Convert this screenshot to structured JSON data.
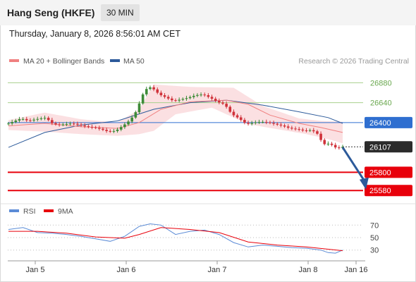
{
  "header": {
    "title": "Hang Seng (HKFE)",
    "timeframe": "30 MIN",
    "datetime": "Thursday, January 8, 2026 8:56:01 AM CET"
  },
  "legend": {
    "ma20_label": "MA 20 + Bollinger Bands",
    "ma50_label": "MA 50",
    "copyright": "Research © 2026 Trading Central",
    "rsi_label": "RSI",
    "rsi9ma_label": "9MA"
  },
  "colors": {
    "up": "#3d8b37",
    "down": "#d0323a",
    "ma20": "#f08080",
    "bollinger_fill": "#fadadd",
    "ma50": "#2c5a9a",
    "resistance": "#a8d08d",
    "pivot": "#2f6fd0",
    "support": "#e8000b",
    "rsi": "#5b8bd6",
    "rsi_ma": "#e8000b",
    "arrow": "#2c5a9a"
  },
  "chart_data": [
    {
      "type": "candlestick",
      "title": "Hang Seng (HKFE)",
      "interval": "30 MIN",
      "x_labels": [
        "Jan 5",
        "Jan 6",
        "Jan 7",
        "Jan 8",
        "Jan 16"
      ],
      "ylim": [
        25480,
        26960
      ],
      "levels": [
        {
          "value": 26880,
          "role": "resistance",
          "label": "26880"
        },
        {
          "value": 26640,
          "role": "resistance",
          "label": "26640"
        },
        {
          "value": 26400,
          "role": "pivot",
          "label": "26400"
        },
        {
          "value": 26107,
          "role": "last",
          "label": "26107"
        },
        {
          "value": 25800,
          "role": "support",
          "label": "25800"
        },
        {
          "value": 25580,
          "role": "support",
          "label": "25580"
        }
      ],
      "close_path": [
        [
          0,
          26380
        ],
        [
          4,
          26450
        ],
        [
          6,
          26420
        ],
        [
          8,
          26440
        ],
        [
          11,
          26460
        ],
        [
          12,
          26400
        ],
        [
          14,
          26370
        ],
        [
          16,
          26380
        ],
        [
          18,
          26390
        ],
        [
          20,
          26370
        ],
        [
          22,
          26350
        ],
        [
          24,
          26340
        ],
        [
          26,
          26320
        ],
        [
          28,
          26290
        ],
        [
          30,
          26300
        ],
        [
          32,
          26360
        ],
        [
          34,
          26430
        ],
        [
          35,
          26490
        ],
        [
          36,
          26560
        ],
        [
          37,
          26700
        ],
        [
          38,
          26780
        ],
        [
          39,
          26830
        ],
        [
          40,
          26820
        ],
        [
          42,
          26740
        ],
        [
          44,
          26700
        ],
        [
          46,
          26660
        ],
        [
          48,
          26680
        ],
        [
          50,
          26700
        ],
        [
          52,
          26730
        ],
        [
          54,
          26740
        ],
        [
          56,
          26700
        ],
        [
          58,
          26650
        ],
        [
          60,
          26620
        ],
        [
          62,
          26500
        ],
        [
          64,
          26450
        ],
        [
          66,
          26380
        ],
        [
          68,
          26400
        ],
        [
          70,
          26410
        ],
        [
          72,
          26400
        ],
        [
          74,
          26380
        ],
        [
          76,
          26360
        ],
        [
          78,
          26330
        ],
        [
          80,
          26320
        ],
        [
          82,
          26300
        ],
        [
          84,
          26310
        ],
        [
          86,
          26250
        ],
        [
          87,
          26130
        ],
        [
          88,
          26150
        ],
        [
          89,
          26140
        ],
        [
          90,
          26120
        ],
        [
          91,
          26080
        ],
        [
          92,
          26107
        ]
      ],
      "ma20_path": [
        [
          0,
          26360
        ],
        [
          10,
          26390
        ],
        [
          20,
          26350
        ],
        [
          30,
          26330
        ],
        [
          36,
          26400
        ],
        [
          42,
          26560
        ],
        [
          50,
          26650
        ],
        [
          60,
          26670
        ],
        [
          66,
          26620
        ],
        [
          72,
          26490
        ],
        [
          80,
          26390
        ],
        [
          86,
          26340
        ],
        [
          92,
          26280
        ]
      ],
      "ma50_path": [
        [
          0,
          26100
        ],
        [
          10,
          26280
        ],
        [
          20,
          26370
        ],
        [
          30,
          26420
        ],
        [
          40,
          26560
        ],
        [
          50,
          26640
        ],
        [
          60,
          26670
        ],
        [
          70,
          26610
        ],
        [
          80,
          26530
        ],
        [
          88,
          26460
        ],
        [
          92,
          26390
        ]
      ],
      "bollinger_upper": [
        [
          0,
          26430
        ],
        [
          10,
          26520
        ],
        [
          20,
          26440
        ],
        [
          30,
          26400
        ],
        [
          36,
          26560
        ],
        [
          40,
          26860
        ],
        [
          50,
          26830
        ],
        [
          62,
          26820
        ],
        [
          70,
          26600
        ],
        [
          80,
          26450
        ],
        [
          86,
          26420
        ],
        [
          92,
          26410
        ]
      ],
      "bollinger_lower": [
        [
          0,
          26310
        ],
        [
          10,
          26290
        ],
        [
          20,
          26260
        ],
        [
          30,
          26240
        ],
        [
          36,
          26260
        ],
        [
          40,
          26300
        ],
        [
          46,
          26500
        ],
        [
          56,
          26580
        ],
        [
          66,
          26380
        ],
        [
          74,
          26320
        ],
        [
          82,
          26260
        ],
        [
          88,
          26200
        ],
        [
          92,
          26150
        ]
      ],
      "projection": {
        "from": [
          92,
          26100
        ],
        "to": [
          98,
          25610
        ]
      }
    },
    {
      "type": "line",
      "title": "RSI",
      "ylim": [
        15,
        85
      ],
      "y_ticks": [
        70,
        50,
        30
      ],
      "series": [
        {
          "name": "RSI",
          "values": [
            [
              0,
              63
            ],
            [
              4,
              66
            ],
            [
              8,
              58
            ],
            [
              12,
              57
            ],
            [
              16,
              55
            ],
            [
              20,
              52
            ],
            [
              24,
              48
            ],
            [
              28,
              44
            ],
            [
              32,
              52
            ],
            [
              36,
              68
            ],
            [
              39,
              72
            ],
            [
              42,
              70
            ],
            [
              46,
              55
            ],
            [
              50,
              60
            ],
            [
              54,
              62
            ],
            [
              58,
              55
            ],
            [
              62,
              42
            ],
            [
              66,
              35
            ],
            [
              70,
              38
            ],
            [
              74,
              36
            ],
            [
              78,
              34
            ],
            [
              82,
              33
            ],
            [
              86,
              30
            ],
            [
              88,
              26
            ],
            [
              90,
              25
            ],
            [
              92,
              30
            ]
          ]
        },
        {
          "name": "9MA",
          "values": [
            [
              0,
              60
            ],
            [
              8,
              60
            ],
            [
              16,
              57
            ],
            [
              24,
              51
            ],
            [
              32,
              49
            ],
            [
              36,
              55
            ],
            [
              42,
              66
            ],
            [
              50,
              63
            ],
            [
              58,
              58
            ],
            [
              66,
              43
            ],
            [
              74,
              38
            ],
            [
              82,
              35
            ],
            [
              92,
              29
            ]
          ]
        }
      ]
    }
  ]
}
